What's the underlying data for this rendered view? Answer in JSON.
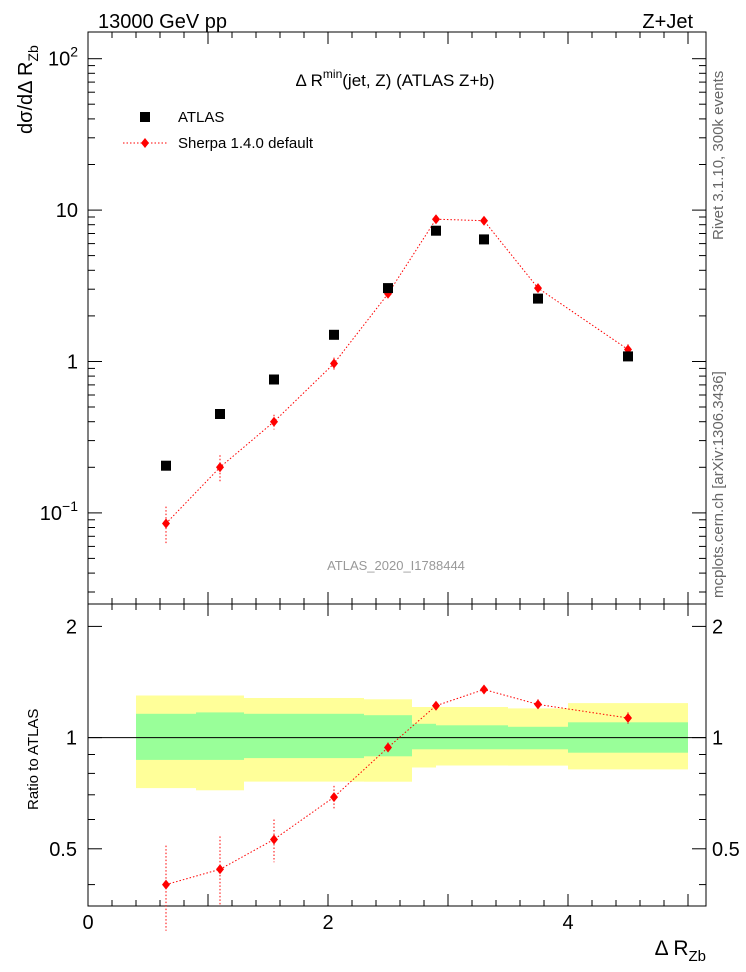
{
  "header": {
    "left": "13000 GeV pp",
    "right": "Z+Jet"
  },
  "side_labels": {
    "rivet": "Rivet 3.1.10,  300k events",
    "mcplots": "mcplots.cern.ch [arXiv:1306.3436]"
  },
  "chart_data": [
    {
      "type": "scatter",
      "title": "Δ R^min(jet, Z) (ATLAS Z+b)",
      "title_parts": {
        "pre": "Δ R",
        "sup": "min",
        "post": "(jet, Z) (ATLAS Z+b)"
      },
      "ylabel": "dσ/dΔ R_Zb",
      "ylabel_parts": {
        "main": "dσ/dΔ R",
        "sub": "Zb"
      },
      "yscale": "log",
      "ylim": [
        0.025,
        150
      ],
      "xlim": [
        0,
        5.15
      ],
      "ytick_labels": [
        {
          "value": 100,
          "base": "10",
          "exp": "2"
        },
        {
          "value": 10,
          "base": "10",
          "exp": ""
        },
        {
          "value": 1,
          "base": "1",
          "exp": ""
        },
        {
          "value": 0.1,
          "base": "10",
          "exp": "−1"
        }
      ],
      "analysis_tag": "ATLAS_2020_I1788444",
      "legend": {
        "position": "top-left",
        "entries": [
          {
            "label": "ATLAS",
            "marker": "square",
            "color": "#000000"
          },
          {
            "label": "Sherpa 1.4.0 default",
            "marker": "diamond",
            "color": "#ff0000",
            "line": "dotted"
          }
        ]
      },
      "series": [
        {
          "name": "ATLAS",
          "x": [
            0.65,
            1.1,
            1.55,
            2.05,
            2.5,
            2.9,
            3.3,
            3.75,
            4.5
          ],
          "y": [
            0.205,
            0.45,
            0.76,
            1.5,
            3.05,
            7.3,
            6.4,
            2.6,
            1.08
          ]
        },
        {
          "name": "Sherpa 1.4.0 default",
          "x": [
            0.65,
            1.1,
            1.55,
            2.05,
            2.5,
            2.9,
            3.3,
            3.75,
            4.5
          ],
          "y": [
            0.085,
            0.2,
            0.4,
            0.97,
            2.8,
            8.7,
            8.5,
            3.05,
            1.2
          ],
          "yerr_low": [
            0.022,
            0.04,
            0.045,
            0.09,
            0.2,
            0.5,
            0.5,
            0.22,
            0.1
          ],
          "yerr_high": [
            0.025,
            0.04,
            0.045,
            0.09,
            0.2,
            0.5,
            0.5,
            0.22,
            0.1
          ]
        }
      ]
    },
    {
      "type": "ratio",
      "ylabel": "Ratio to ATLAS",
      "xlabel": "Δ R_Zb",
      "xlabel_parts": {
        "main": "Δ R",
        "sub": "Zb"
      },
      "ylim": [
        0.35,
        2.3
      ],
      "xlim": [
        0,
        5.15
      ],
      "ytick_labels": [
        "2",
        "1",
        "0.5"
      ],
      "ytick_values": [
        2,
        1,
        0.5
      ],
      "xtick_labels": [
        "0",
        "2",
        "4"
      ],
      "xtick_values": [
        0,
        2,
        4
      ],
      "reference": 1,
      "bands": [
        {
          "x0": 0.4,
          "x1": 0.9,
          "y_low": 0.73,
          "y_high": 1.3,
          "stat_low": 0.87,
          "stat_high": 1.16
        },
        {
          "x0": 0.9,
          "x1": 1.3,
          "y_low": 0.72,
          "y_high": 1.3,
          "stat_low": 0.87,
          "stat_high": 1.17
        },
        {
          "x0": 1.3,
          "x1": 1.8,
          "y_low": 0.76,
          "y_high": 1.28,
          "stat_low": 0.88,
          "stat_high": 1.16
        },
        {
          "x0": 1.8,
          "x1": 2.3,
          "y_low": 0.76,
          "y_high": 1.28,
          "stat_low": 0.88,
          "stat_high": 1.16
        },
        {
          "x0": 2.3,
          "x1": 2.7,
          "y_low": 0.76,
          "y_high": 1.27,
          "stat_low": 0.89,
          "stat_high": 1.15
        },
        {
          "x0": 2.7,
          "x1": 2.9,
          "y_low": 0.83,
          "y_high": 1.21,
          "stat_low": 0.93,
          "stat_high": 1.09
        },
        {
          "x0": 2.9,
          "x1": 3.5,
          "y_low": 0.84,
          "y_high": 1.21,
          "stat_low": 0.93,
          "stat_high": 1.08
        },
        {
          "x0": 3.5,
          "x1": 4.0,
          "y_low": 0.84,
          "y_high": 1.2,
          "stat_low": 0.93,
          "stat_high": 1.07
        },
        {
          "x0": 4.0,
          "x1": 5.0,
          "y_low": 0.82,
          "y_high": 1.24,
          "stat_low": 0.91,
          "stat_high": 1.1
        }
      ],
      "series": [
        {
          "name": "Sherpa 1.4.0 default / ATLAS",
          "x": [
            0.65,
            1.1,
            1.55,
            2.05,
            2.5,
            2.9,
            3.3,
            3.75,
            4.5
          ],
          "y": [
            0.4,
            0.44,
            0.53,
            0.69,
            0.94,
            1.22,
            1.35,
            1.23,
            1.13
          ],
          "yerr_low": [
            0.1,
            0.09,
            0.07,
            0.05,
            0.03,
            0.02,
            0.02,
            0.04,
            0.04
          ],
          "yerr_high": [
            0.11,
            0.1,
            0.07,
            0.05,
            0.03,
            0.02,
            0.02,
            0.04,
            0.04
          ]
        }
      ]
    }
  ]
}
